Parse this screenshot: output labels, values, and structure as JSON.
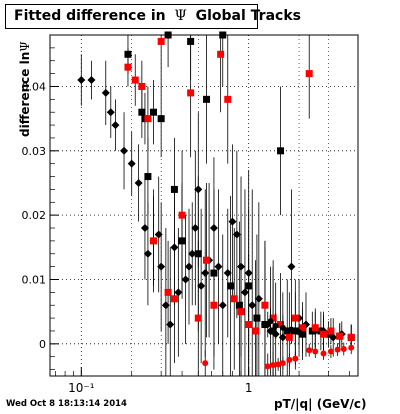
{
  "title": {
    "prefix": "Fitted difference in",
    "symbol": "Ψ",
    "suffix": "Global Tracks"
  },
  "timestamp": "Wed Oct  8 18:13:14 2014",
  "chart_data": {
    "type": "scatter",
    "xlabel": "pT/|q| (GeV/c)",
    "ylabel_prefix": "difference ln",
    "ylabel_symbol": "Ψ",
    "x_scale": "log",
    "xlim": [
      0.065,
      4.5
    ],
    "ylim": [
      -0.005,
      0.048
    ],
    "x_ticks": [
      {
        "value": 0.1,
        "label": "10⁻¹"
      },
      {
        "value": 1,
        "label": "1"
      }
    ],
    "y_ticks": [
      {
        "value": 0,
        "label": "0"
      },
      {
        "value": 0.01,
        "label": "0.01"
      },
      {
        "value": 0.02,
        "label": "0.02"
      },
      {
        "value": 0.03,
        "label": "0.03"
      },
      {
        "value": 0.04,
        "label": "0.04"
      }
    ],
    "grid": true,
    "colors": {
      "black": "#000000",
      "red": "#ff0000"
    },
    "series": [
      {
        "marker": "diamond",
        "color": "#000000",
        "points": [
          [
            0.1,
            0.041,
            0.004
          ],
          [
            0.115,
            0.041,
            0.003
          ],
          [
            0.14,
            0.039,
            0.005
          ],
          [
            0.15,
            0.036,
            0.004
          ],
          [
            0.16,
            0.034,
            0.004
          ],
          [
            0.18,
            0.03,
            0.006
          ],
          [
            0.2,
            0.028,
            0.005
          ],
          [
            0.22,
            0.025,
            0.006
          ],
          [
            0.24,
            0.018,
            0.008
          ],
          [
            0.25,
            0.014,
            0.008
          ],
          [
            0.27,
            0.016,
            0.008
          ],
          [
            0.29,
            0.017,
            0.009
          ],
          [
            0.3,
            0.012,
            0.01
          ],
          [
            0.32,
            0.006,
            0.012
          ],
          [
            0.34,
            0.003,
            0.012
          ],
          [
            0.36,
            0.015,
            0.009
          ],
          [
            0.38,
            0.008,
            0.01
          ],
          [
            0.4,
            0.016,
            0.008
          ],
          [
            0.42,
            0.01,
            0.01
          ],
          [
            0.44,
            0.012,
            0.009
          ],
          [
            0.46,
            0.014,
            0.008
          ],
          [
            0.48,
            0.018,
            0.012
          ],
          [
            0.5,
            0.024,
            0.012
          ],
          [
            0.52,
            0.009,
            0.012
          ],
          [
            0.55,
            0.011,
            0.013
          ],
          [
            0.58,
            0.013,
            0.012
          ],
          [
            0.62,
            0.018,
            0.011
          ],
          [
            0.66,
            0.012,
            0.012
          ],
          [
            0.7,
            0.006,
            0.011
          ],
          [
            0.75,
            0.011,
            0.01
          ],
          [
            0.8,
            0.019,
            0.012
          ],
          [
            0.85,
            0.017,
            0.013
          ],
          [
            0.9,
            0.012,
            0.014
          ],
          [
            0.95,
            0.008,
            0.016
          ],
          [
            1.0,
            0.011,
            0.016
          ],
          [
            1.05,
            0.006,
            0.018
          ],
          [
            1.15,
            0.007,
            0.015
          ],
          [
            1.25,
            0.003,
            0.013
          ],
          [
            1.35,
            0.002,
            0.01
          ],
          [
            1.45,
            0.0015,
            0.008
          ],
          [
            1.6,
            0.001,
            0.007
          ],
          [
            1.8,
            0.012,
            0.012
          ],
          [
            2.0,
            0.004,
            0.006
          ],
          [
            2.2,
            0.003,
            0.005
          ],
          [
            2.5,
            0.002,
            0.003
          ],
          [
            2.8,
            0.002,
            0.003
          ],
          [
            3.2,
            0.001,
            0.003
          ],
          [
            3.6,
            0.0015,
            0.002
          ],
          [
            4.1,
            0.001,
            0.002
          ]
        ]
      },
      {
        "marker": "square",
        "color": "#000000",
        "points": [
          [
            0.19,
            0.045,
            0.003
          ],
          [
            0.23,
            0.036,
            0.004
          ],
          [
            0.24,
            0.035,
            0.004
          ],
          [
            0.25,
            0.026,
            0.006
          ],
          [
            0.27,
            0.036,
            0.005
          ],
          [
            0.3,
            0.035,
            0.006
          ],
          [
            0.33,
            0.048,
            0.005
          ],
          [
            0.36,
            0.024,
            0.008
          ],
          [
            0.4,
            0.016,
            0.009
          ],
          [
            0.45,
            0.047,
            0.006
          ],
          [
            0.5,
            0.014,
            0.012
          ],
          [
            0.56,
            0.038,
            0.01
          ],
          [
            0.62,
            0.011,
            0.013
          ],
          [
            0.7,
            0.048,
            0.008
          ],
          [
            0.78,
            0.009,
            0.014
          ],
          [
            0.88,
            0.006,
            0.013
          ],
          [
            1.0,
            0.009,
            0.012
          ],
          [
            1.12,
            0.004,
            0.013
          ],
          [
            1.25,
            0.003,
            0.012
          ],
          [
            1.4,
            0.002,
            0.01
          ],
          [
            1.55,
            0.03,
            0.01
          ],
          [
            1.7,
            0.002,
            0.008
          ],
          [
            1.9,
            0.002,
            0.006
          ],
          [
            2.1,
            0.0015,
            0.004
          ],
          [
            2.4,
            0.002,
            0.003
          ],
          [
            2.7,
            0.002,
            0.003
          ],
          [
            3.0,
            0.0015,
            0.002
          ],
          [
            3.5,
            0.0012,
            0.002
          ],
          [
            4.1,
            0.001,
            0.002
          ]
        ]
      },
      {
        "marker": "square",
        "color": "#ff0000",
        "points": [
          [
            0.19,
            0.043,
            0.003
          ],
          [
            0.21,
            0.041,
            0.004
          ],
          [
            0.23,
            0.04,
            0.004
          ],
          [
            0.25,
            0.035,
            0.005
          ],
          [
            0.27,
            0.016,
            0.007
          ],
          [
            0.3,
            0.047,
            0.006
          ],
          [
            0.33,
            0.008,
            0.008
          ],
          [
            0.36,
            0.007,
            0.01
          ],
          [
            0.4,
            0.02,
            0.01
          ],
          [
            0.45,
            0.039,
            0.01
          ],
          [
            0.5,
            0.004,
            0.012
          ],
          [
            0.56,
            0.013,
            0.012
          ],
          [
            0.62,
            0.006,
            0.01
          ],
          [
            0.68,
            0.045,
            0.009
          ],
          [
            0.75,
            0.038,
            0.01
          ],
          [
            0.82,
            0.007,
            0.011
          ],
          [
            0.9,
            0.005,
            0.012
          ],
          [
            1.0,
            0.003,
            0.011
          ],
          [
            1.1,
            0.002,
            0.011
          ],
          [
            1.25,
            0.006,
            0.01
          ],
          [
            1.4,
            0.004,
            0.009
          ],
          [
            1.55,
            0.003,
            0.008
          ],
          [
            1.75,
            0.001,
            0.007
          ],
          [
            1.9,
            0.004,
            0.006
          ],
          [
            2.1,
            0.0025,
            0.004
          ],
          [
            2.3,
            0.042,
            0.007
          ],
          [
            2.5,
            0.0025,
            0.003
          ],
          [
            2.8,
            0.0015,
            0.003
          ],
          [
            3.1,
            0.002,
            0.002
          ],
          [
            3.5,
            0.0012,
            0.002
          ],
          [
            4.1,
            0.001,
            0.002
          ]
        ]
      },
      {
        "marker": "circle",
        "color": "#ff0000",
        "points": [
          [
            0.55,
            -0.003,
            0.002
          ],
          [
            1.3,
            -0.0035,
            0.002
          ],
          [
            1.4,
            -0.0033,
            0.002
          ],
          [
            1.5,
            -0.0032,
            0.001
          ],
          [
            1.6,
            -0.003,
            0.001
          ],
          [
            1.75,
            -0.0025,
            0.001
          ],
          [
            1.9,
            -0.0023,
            0.001
          ],
          [
            2.3,
            -0.001,
            0.001
          ],
          [
            2.5,
            -0.0012,
            0.001
          ],
          [
            2.8,
            -0.0015,
            0.001
          ],
          [
            3.1,
            -0.0012,
            0.001
          ],
          [
            3.4,
            -0.0009,
            0.001
          ],
          [
            3.7,
            -0.0008,
            0.001
          ],
          [
            4.1,
            -0.0006,
            0.001
          ]
        ]
      },
      {
        "marker": "circle",
        "color": "#000000",
        "points": [
          [
            1.3,
            0.003,
            0.002
          ],
          [
            1.35,
            0.0035,
            0.002
          ],
          [
            1.45,
            0.0028,
            0.002
          ],
          [
            1.6,
            0.0025,
            0.002
          ],
          [
            1.8,
            0.0022,
            0.002
          ],
          [
            2.0,
            0.0018,
            0.002
          ]
        ]
      }
    ]
  }
}
